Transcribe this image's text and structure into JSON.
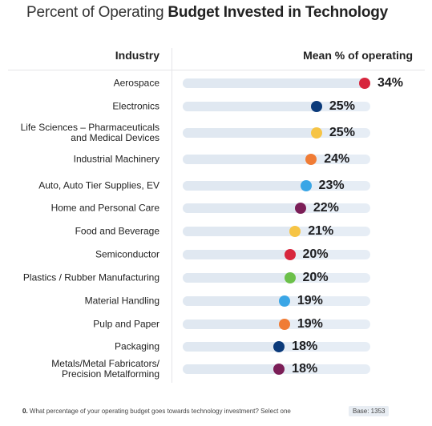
{
  "title": {
    "light": "Percent of Operating ",
    "bold": "Budget Invested in Technology"
  },
  "headers": {
    "industry": "Industry",
    "mean": "Mean % of operating"
  },
  "footnote": {
    "q": "0.",
    "text": " What percentage of your operating budget goes towards technology investment? Select one",
    "base": "Base: 1353"
  },
  "colors": {
    "red": "#d7263d",
    "navy": "#0b3a7a",
    "yellow": "#f6c445",
    "orange": "#f07c35",
    "sky": "#3aa6e6",
    "plum": "#7b1e57",
    "green": "#6cc04a",
    "track": "#e6edf5"
  },
  "chart_data": {
    "type": "bar",
    "title": "Percent of Operating Budget Invested in Technology",
    "xlabel": "Mean % of operating",
    "ylabel": "Industry",
    "xlim": [
      0,
      34
    ],
    "grid": false,
    "categories": [
      "Aerospace",
      "Electronics",
      "Life Sciences – Pharmaceuticals\nand Medical Devices",
      "Industrial Machinery",
      "Auto, Auto Tier Supplies, EV",
      "Home and Personal Care",
      "Food and Beverage",
      "Semiconductor",
      "Plastics / Rubber Manufacturing",
      "Material Handling",
      "Pulp and Paper",
      "Packaging",
      "Metals/Metal Fabricators/\nPrecision Metalforming"
    ],
    "values": [
      34,
      25,
      25,
      24,
      23,
      22,
      21,
      20,
      20,
      19,
      19,
      18,
      18
    ],
    "value_labels": [
      "34%",
      "25%",
      "25%",
      "24%",
      "23%",
      "22%",
      "21%",
      "20%",
      "20%",
      "19%",
      "19%",
      "18%",
      "18%"
    ],
    "dot_colors": [
      "#d7263d",
      "#0b3a7a",
      "#f6c445",
      "#f07c35",
      "#3aa6e6",
      "#7b1e57",
      "#f6c445",
      "#d7263d",
      "#6cc04a",
      "#3aa6e6",
      "#f07c35",
      "#0b3a7a",
      "#7b1e57"
    ]
  }
}
